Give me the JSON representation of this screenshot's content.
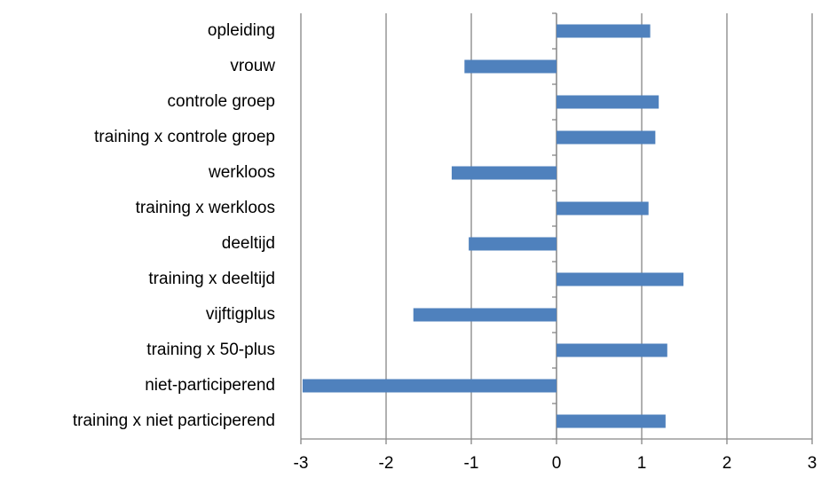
{
  "chart_data": {
    "type": "barh",
    "categories": [
      "opleiding",
      "vrouw",
      "controle groep",
      "training x controle groep",
      "werkloos",
      "training x werkloos",
      "deeltijd",
      "training x deeltijd",
      "vijftigplus",
      "training x 50-plus",
      "niet-participerend",
      "training x niet participerend"
    ],
    "values": [
      1.1,
      -1.08,
      1.2,
      1.16,
      -1.23,
      1.08,
      -1.03,
      1.49,
      -1.68,
      1.3,
      -2.98,
      1.28
    ],
    "color": "#4f81bd",
    "xlim": [
      -3,
      3
    ],
    "xticks": [
      -3,
      -2,
      -1,
      0,
      1,
      2,
      3
    ],
    "grid": true
  }
}
